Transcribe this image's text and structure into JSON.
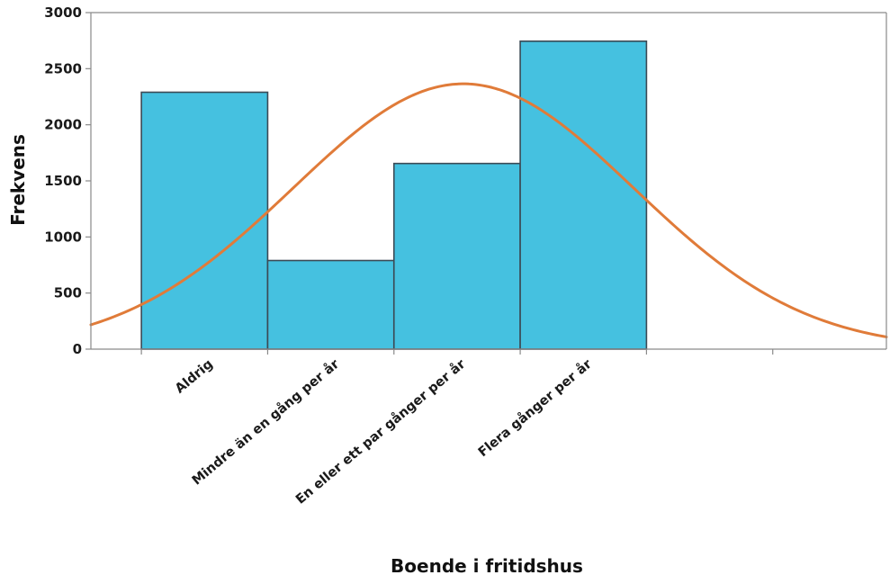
{
  "chart_data": {
    "type": "bar",
    "xlabel": "Boende i fritidshus",
    "ylabel": "Frekvens",
    "categories": [
      "Aldrig",
      "Mindre än en gång per år",
      "En eller ett par gånger per år",
      "Flera gånger per år"
    ],
    "values": [
      2290,
      790,
      1655,
      2745
    ],
    "ylim": [
      0,
      3000
    ],
    "yticks": [
      0,
      500,
      1000,
      1500,
      2000,
      2500,
      3000
    ],
    "xlim": [
      -0.9,
      5.4
    ],
    "normal_curve": {
      "mean": 2.05,
      "sd": 1.35,
      "peak": 2365
    },
    "grid": false,
    "legend": "none",
    "colors": {
      "bar": "#45c1e0",
      "bar_edge": "#3c4a55",
      "curve": "#e07b39",
      "axis": "#8a8a8a"
    }
  }
}
